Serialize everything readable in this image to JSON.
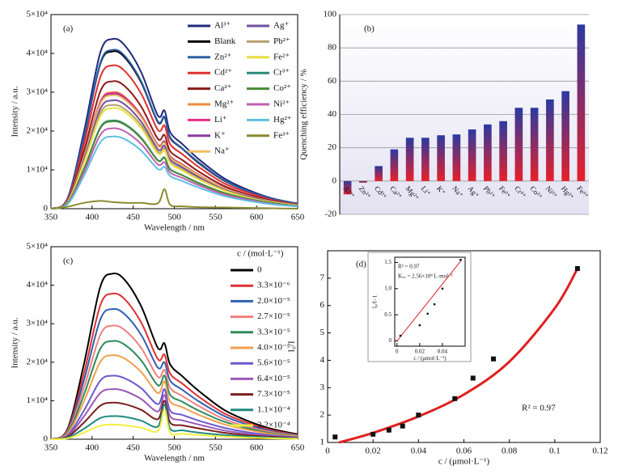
{
  "chart_data": [
    {
      "type": "line",
      "panel_label": "(a)",
      "x_label": "Wavelength / nm",
      "y_label": "Intensity / a.u.",
      "x": [
        350,
        370,
        390,
        410,
        425,
        440,
        460,
        480,
        488,
        495,
        510,
        530,
        560,
        590,
        620,
        650
      ],
      "xlim": [
        350,
        650
      ],
      "xticks": [
        350,
        400,
        450,
        500,
        550,
        600,
        650
      ],
      "ylim": [
        0,
        50000
      ],
      "yticks": [
        0,
        {
          "value": 10000,
          "label": "1×10⁴"
        },
        {
          "value": 20000,
          "label": "2×10⁴"
        },
        {
          "value": 30000,
          "label": "3×10⁴"
        },
        {
          "value": 40000,
          "label": "4×10⁴"
        },
        {
          "value": 50000,
          "label": "5×10⁴"
        }
      ],
      "legend": "upper right",
      "series": [
        {
          "name": "Al³⁺",
          "color": "#1f2a7a",
          "values": [
            0,
            2600,
            19700,
            40200,
            43700,
            42000,
            35000,
            24000,
            25300,
            19700,
            16600,
            12700,
            7900,
            4800,
            2600,
            1300
          ]
        },
        {
          "name": "Blank",
          "color": "#000000",
          "values": [
            0,
            2400,
            18200,
            37300,
            40500,
            38900,
            32400,
            22300,
            23500,
            18200,
            15400,
            11700,
            7300,
            4500,
            2400,
            1200
          ]
        },
        {
          "name": "Zn²⁺",
          "color": "#2f5fa8",
          "values": [
            0,
            2500,
            18400,
            37600,
            40900,
            39300,
            32700,
            22500,
            23700,
            18400,
            15500,
            11900,
            7400,
            4500,
            2500,
            1200
          ]
        },
        {
          "name": "Cd²⁺",
          "color": "#e03030",
          "values": [
            0,
            2200,
            16600,
            33900,
            36900,
            35400,
            29500,
            20300,
            21400,
            16600,
            14000,
            10700,
            6600,
            4100,
            2200,
            1100
          ]
        },
        {
          "name": "Ca²⁺",
          "color": "#8b1a1a",
          "values": [
            0,
            2000,
            14800,
            30200,
            32800,
            31500,
            26200,
            18000,
            19000,
            14800,
            12500,
            9500,
            5900,
            3600,
            2000,
            1000
          ]
        },
        {
          "name": "Mg²⁺",
          "color": "#f08a3a",
          "values": [
            0,
            1800,
            13500,
            27600,
            30000,
            28800,
            24000,
            16500,
            17400,
            13500,
            11400,
            8700,
            5400,
            3300,
            1800,
            900
          ]
        },
        {
          "name": "Li⁺",
          "color": "#e8308a",
          "values": [
            0,
            1800,
            13400,
            27400,
            29800,
            28600,
            23800,
            16400,
            17300,
            13400,
            11300,
            8600,
            5400,
            3300,
            1800,
            900
          ]
        },
        {
          "name": "K⁺",
          "color": "#8a3aa0",
          "values": [
            0,
            1800,
            13200,
            27000,
            29400,
            28200,
            23500,
            16200,
            17100,
            13200,
            11200,
            8500,
            5300,
            3200,
            1800,
            900
          ]
        },
        {
          "name": "Na⁺",
          "color": "#f0c060",
          "values": [
            0,
            1800,
            13100,
            26900,
            29200,
            28000,
            23400,
            16100,
            16900,
            13100,
            11100,
            8500,
            5300,
            3200,
            1800,
            900
          ]
        },
        {
          "name": "Ag⁺",
          "color": "#7050a0",
          "values": [
            0,
            1700,
            12600,
            25700,
            27900,
            26800,
            22300,
            15300,
            16200,
            12600,
            10600,
            8100,
            5000,
            3100,
            1700,
            800
          ]
        },
        {
          "name": "Pb²⁺",
          "color": "#b8a070",
          "values": [
            0,
            1600,
            12000,
            24600,
            26700,
            25600,
            21400,
            14700,
            15500,
            12000,
            10100,
            7700,
            4800,
            2900,
            1600,
            800
          ]
        },
        {
          "name": "Fe²⁺",
          "color": "#e8e040",
          "values": [
            0,
            1600,
            11700,
            23800,
            25900,
            24900,
            20700,
            14200,
            15000,
            11700,
            9800,
            7500,
            4700,
            2800,
            1600,
            800
          ]
        },
        {
          "name": "Cr³⁺",
          "color": "#2a8a7a",
          "values": [
            0,
            1400,
            10200,
            20900,
            22700,
            21800,
            18200,
            12500,
            13200,
            10200,
            8600,
            6600,
            4100,
            2500,
            1400,
            700
          ]
        },
        {
          "name": "Co²⁺",
          "color": "#4a8a3a",
          "values": [
            0,
            1400,
            10100,
            20700,
            22500,
            21600,
            18000,
            12400,
            13100,
            10100,
            8600,
            6500,
            4100,
            2500,
            1400,
            700
          ]
        },
        {
          "name": "Ni²⁺",
          "color": "#c060b0",
          "values": [
            0,
            1200,
            9300,
            19000,
            20700,
            19900,
            16600,
            11400,
            12000,
            9300,
            7900,
            6000,
            3700,
            2300,
            1200,
            600
          ]
        },
        {
          "name": "Hg²⁺",
          "color": "#60c0e0",
          "values": [
            0,
            1100,
            8400,
            17100,
            18600,
            17900,
            14900,
            10200,
            10800,
            8400,
            7100,
            5400,
            3300,
            2000,
            1100,
            600
          ]
        },
        {
          "name": "Fe³⁺",
          "color": "#8a8a30",
          "values": [
            0,
            500,
            1500,
            2000,
            1700,
            1500,
            1500,
            1400,
            5000,
            1000,
            600,
            400,
            300,
            200,
            100,
            0
          ]
        }
      ]
    },
    {
      "type": "bar",
      "panel_label": "(b)",
      "y_label": "Quenching efficiency / %",
      "categories": [
        "Al³⁺",
        "Zn²⁺",
        "Cd²⁺",
        "Ca²⁺",
        "Mg²⁺",
        "Li⁺",
        "K⁺",
        "Na⁺",
        "Ag⁺",
        "Pb²⁺",
        "Fe²⁺",
        "Cr³⁺",
        "Co²⁺",
        "Ni²⁺",
        "Hg²⁺",
        "Fe³⁺"
      ],
      "values": [
        -8,
        -1,
        9,
        19,
        26,
        26,
        27.5,
        28,
        31,
        34,
        36,
        44,
        44,
        49,
        54,
        94
      ],
      "colors": [
        "#2b3aa0",
        "#e8202a"
      ],
      "ylim": [
        -20,
        100
      ],
      "yticks": [
        -20,
        0,
        20,
        40,
        60,
        80,
        100
      ],
      "grid": true
    },
    {
      "type": "line",
      "panel_label": "(c)",
      "x_label": "Wavelength / nm",
      "y_label": "Intensity / a.u.",
      "legend_title": "c / (mol·L⁻¹)",
      "x": [
        350,
        370,
        390,
        410,
        425,
        440,
        460,
        480,
        488,
        495,
        510,
        530,
        560,
        590,
        620,
        650
      ],
      "xlim": [
        350,
        650
      ],
      "xticks": [
        350,
        400,
        450,
        500,
        550,
        600,
        650
      ],
      "ylim": [
        0,
        50000
      ],
      "yticks": [
        0,
        {
          "value": 10000,
          "label": "1×10⁴"
        },
        {
          "value": 20000,
          "label": "2×10⁴"
        },
        {
          "value": 30000,
          "label": "3×10⁴"
        },
        {
          "value": 40000,
          "label": "4×10⁴"
        },
        {
          "value": 50000,
          "label": "5×10⁴"
        }
      ],
      "legend": "upper right",
      "series": [
        {
          "name": "0",
          "color": "#000000",
          "values": [
            0,
            2600,
            19400,
            39600,
            43000,
            41300,
            34400,
            23700,
            24900,
            19400,
            16300,
            12500,
            7700,
            4700,
            2600,
            1300
          ]
        },
        {
          "name": "3.3×10⁻⁶",
          "color": "#e03030",
          "values": [
            0,
            2300,
            17000,
            34800,
            37800,
            36300,
            30200,
            20800,
            22000,
            17000,
            14400,
            11000,
            6800,
            4200,
            2300,
            1100
          ]
        },
        {
          "name": "2.0×10⁻⁵",
          "color": "#3060b0",
          "values": [
            0,
            2000,
            15200,
            31100,
            33800,
            32400,
            27000,
            18600,
            20000,
            15200,
            12800,
            9800,
            6100,
            3700,
            2000,
            1000
          ]
        },
        {
          "name": "2.7×10⁻⁵",
          "color": "#f08080",
          "values": [
            0,
            1800,
            13300,
            27100,
            29500,
            28300,
            23600,
            16200,
            18000,
            13300,
            11200,
            8600,
            5300,
            3200,
            1800,
            900
          ]
        },
        {
          "name": "3.3×10⁻⁵",
          "color": "#2e8b57",
          "values": [
            0,
            1500,
            11500,
            23500,
            25500,
            24500,
            20400,
            14000,
            16500,
            11500,
            9700,
            7400,
            4600,
            2800,
            1500,
            800
          ]
        },
        {
          "name": "4.0×10⁻⁵",
          "color": "#f0a050",
          "values": [
            0,
            1300,
            9800,
            20100,
            21800,
            20900,
            17400,
            12000,
            15000,
            9800,
            8300,
            6300,
            3900,
            2400,
            1300,
            700
          ]
        },
        {
          "name": "5.6×10⁻⁵",
          "color": "#6a5acd",
          "values": [
            0,
            1000,
            7400,
            15200,
            16500,
            15800,
            13200,
            9100,
            13000,
            7400,
            6300,
            4800,
            3000,
            1800,
            1000,
            500
          ]
        },
        {
          "name": "6.4×10⁻⁵",
          "color": "#9b59b6",
          "values": [
            0,
            800,
            5900,
            12000,
            13000,
            12500,
            10400,
            7200,
            11500,
            5900,
            4900,
            3800,
            2300,
            1400,
            800,
            400
          ]
        },
        {
          "name": "7.3×10⁻⁵",
          "color": "#7b1e1e",
          "values": [
            0,
            600,
            4300,
            8700,
            9500,
            9100,
            7600,
            5200,
            10000,
            4300,
            3600,
            2800,
            1700,
            1000,
            600,
            300
          ]
        },
        {
          "name": "1.1×10⁻⁴",
          "color": "#1f8a80",
          "values": [
            0,
            400,
            2700,
            5500,
            6000,
            5800,
            4800,
            3300,
            9000,
            2700,
            2300,
            1700,
            1100,
            700,
            400,
            200
          ]
        },
        {
          "name": "2.2×10⁻⁴",
          "color": "#f0f040",
          "values": [
            0,
            200,
            1700,
            3500,
            3800,
            3600,
            3000,
            2100,
            7700,
            1700,
            1400,
            1100,
            700,
            400,
            200,
            100
          ]
        }
      ]
    },
    {
      "type": "scatter",
      "panel_label": "(d)",
      "x_label": "c / (μmol·L⁻¹)",
      "y_label": "I₀/I",
      "annotations": [
        "R² = 0.97"
      ],
      "x": [
        0.0033,
        0.02,
        0.027,
        0.033,
        0.04,
        0.056,
        0.064,
        0.073,
        0.11
      ],
      "values": [
        1.2,
        1.3,
        1.45,
        1.6,
        2.0,
        2.6,
        3.35,
        4.05,
        7.35
      ],
      "color": "#111111",
      "fit": {
        "color": "#e02020",
        "x": [
          0.005,
          0.02,
          0.04,
          0.06,
          0.08,
          0.1,
          0.11
        ],
        "values": [
          1.0,
          1.35,
          1.95,
          2.75,
          3.95,
          5.9,
          7.35
        ]
      },
      "xlim": [
        0,
        0.12
      ],
      "xticks": [
        0,
        0.02,
        0.04,
        0.06,
        0.08,
        0.1,
        0.12
      ],
      "ylim": [
        1,
        8
      ],
      "yticks": [
        1,
        2,
        3,
        4,
        5,
        6,
        7
      ]
    },
    {
      "type": "scatter",
      "x_label": "c / (μmol·L⁻¹)",
      "y_label": "I₀/I−1",
      "annotations": [
        "R² = 0.97",
        "Kₛᵥ = 2.56×10⁴ L·mol⁻¹"
      ],
      "x": [
        0.003,
        0.02,
        0.027,
        0.033,
        0.04,
        0.056
      ],
      "values": [
        0.1,
        0.3,
        0.52,
        0.7,
        1.0,
        1.55
      ],
      "color": "#111111",
      "fit": {
        "color": "#e02020",
        "x": [
          0,
          0.057
        ],
        "values": [
          0,
          1.55
        ]
      },
      "xlim": [
        -0.002,
        0.06
      ],
      "xticks": [
        0,
        0.02,
        0.04
      ],
      "ylim": [
        -0.1,
        1.6
      ],
      "yticks": [
        0,
        0.5,
        {
          "value": 1,
          "label": "1.0"
        },
        1.5
      ]
    }
  ]
}
